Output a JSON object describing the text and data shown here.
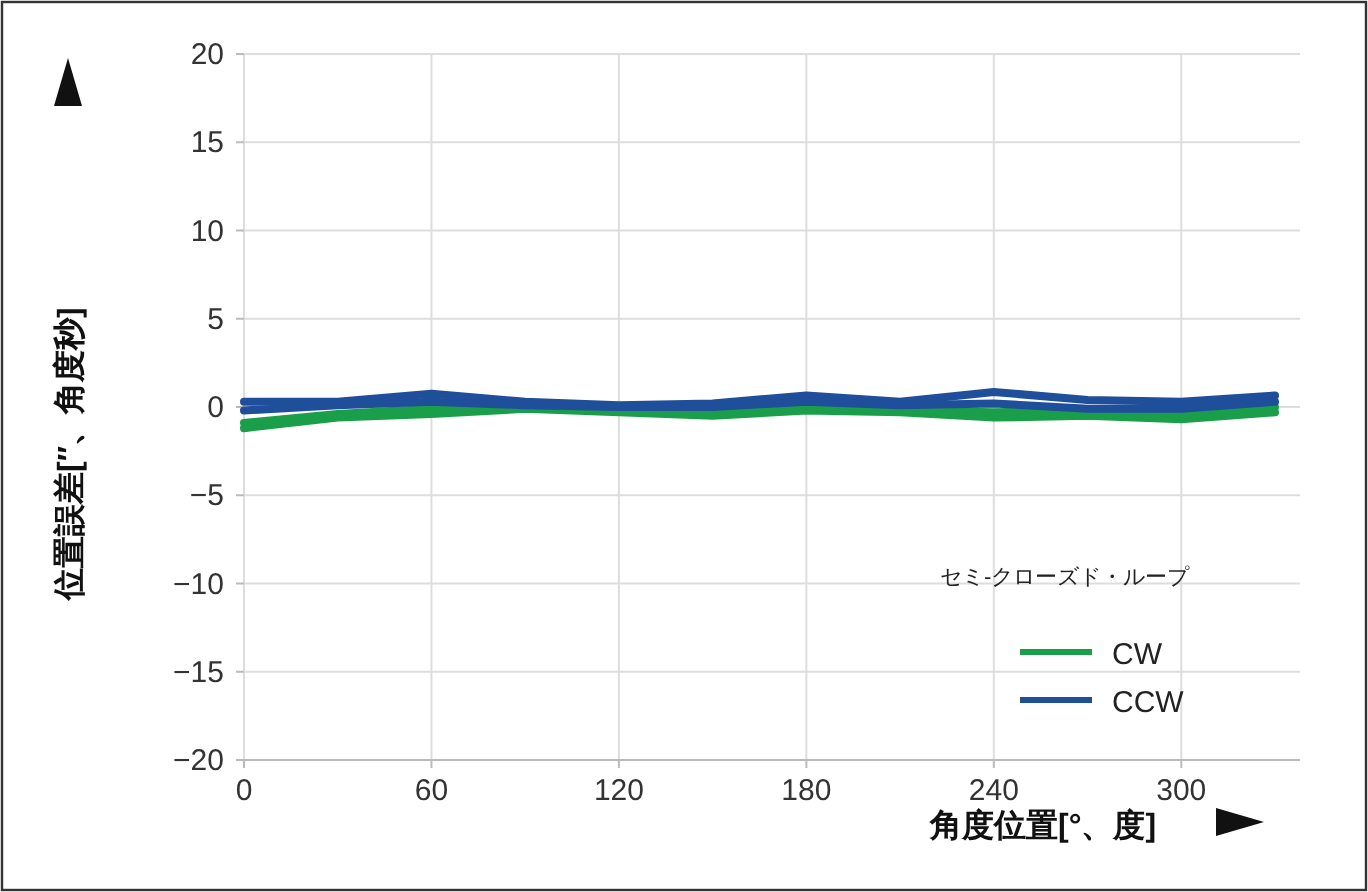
{
  "chart_data": {
    "type": "line",
    "xlabel": "角度位置[°、度]",
    "ylabel": "位置誤差[″、角度秒]",
    "legend_title": "セミ-クローズド・ループ",
    "x": [
      0,
      30,
      60,
      90,
      120,
      150,
      180,
      210,
      240,
      270,
      300,
      330
    ],
    "series": [
      {
        "name": "CW",
        "color": "#1a9e4a",
        "values": [
          -1.2,
          -0.6,
          -0.4,
          -0.1,
          -0.3,
          -0.5,
          -0.2,
          -0.3,
          -0.6,
          -0.5,
          -0.7,
          -0.3
        ]
      },
      {
        "color": "#1a9e4a",
        "values": [
          -0.9,
          -0.4,
          -0.1,
          0,
          -0.2,
          -0.3,
          0,
          -0.2,
          -0.3,
          -0.2,
          -0.3,
          0
        ]
      },
      {
        "name": "CCW",
        "color": "#1f4e9a",
        "values": [
          0.3,
          0.3,
          0.75,
          0.3,
          0.1,
          0.2,
          0.65,
          0.3,
          0.85,
          0.4,
          0.3,
          0.65
        ]
      },
      {
        "color": "#1f4e9a",
        "values": [
          -0.2,
          0.1,
          0.3,
          0.1,
          0,
          0,
          0.3,
          0.1,
          0.2,
          -0.1,
          -0.1,
          0.3
        ]
      }
    ],
    "xlim": [
      0,
      338
    ],
    "ylim": [
      -20,
      20
    ],
    "xticks": [
      0,
      60,
      120,
      180,
      240,
      300
    ],
    "yticks": [
      -20,
      -15,
      -10,
      -5,
      0,
      5,
      10,
      15,
      20
    ],
    "grid": true,
    "legend": "bottom right",
    "line_style": "solid",
    "marker": "none"
  }
}
